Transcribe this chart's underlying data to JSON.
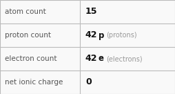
{
  "rows": [
    {
      "label": "atom count",
      "value_bold": "15",
      "symbol": "",
      "suffix": ""
    },
    {
      "label": "proton count",
      "value_bold": "42",
      "symbol": "p",
      "suffix": "(protons)"
    },
    {
      "label": "electron count",
      "value_bold": "42",
      "symbol": "e",
      "suffix": "(electrons)"
    },
    {
      "label": "net ionic charge",
      "value_bold": "0",
      "symbol": "",
      "suffix": ""
    }
  ],
  "col_split": 0.455,
  "bg_color": "#f9f9f9",
  "border_color": "#bbbbbb",
  "label_color": "#555555",
  "value_color": "#111111",
  "suffix_color": "#999999",
  "font_size_label": 7.5,
  "font_size_value": 9.0,
  "font_size_symbol": 8.5,
  "font_size_suffix": 7.0
}
